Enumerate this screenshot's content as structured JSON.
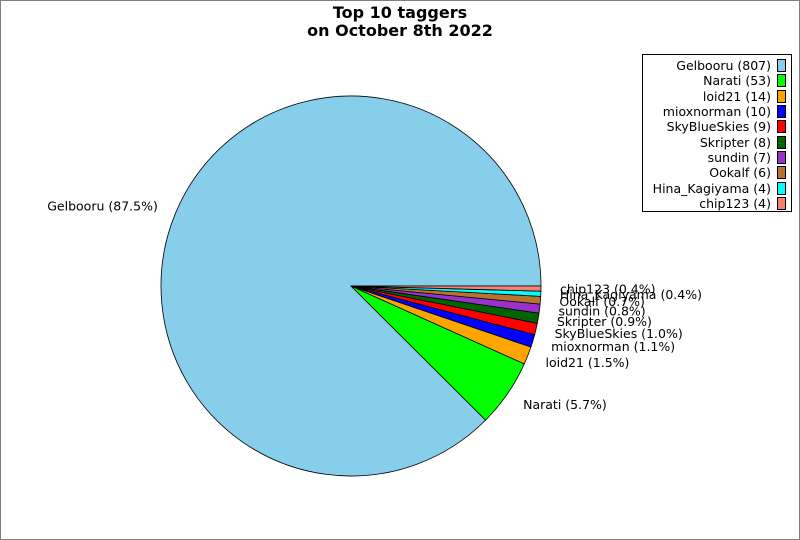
{
  "chart_data": {
    "type": "pie",
    "title": [
      "Top 10 taggers",
      "on October 8th 2022"
    ],
    "start_angle_deg": 0,
    "direction": "counterclockwise",
    "legend_position": "top-right",
    "slices": [
      {
        "name": "Gelbooru",
        "value": 807,
        "label": "Gelbooru (87.5%)",
        "legend": "Gelbooru (807)",
        "color": "#87ceeb"
      },
      {
        "name": "Narati",
        "value": 53,
        "label": "Narati (5.7%)",
        "legend": "Narati (53)",
        "color": "#00ff00"
      },
      {
        "name": "loid21",
        "value": 14,
        "label": "loid21 (1.5%)",
        "legend": "loid21 (14)",
        "color": "#ffa500"
      },
      {
        "name": "mioxnorman",
        "value": 10,
        "label": "mioxnorman (1.1%)",
        "legend": "mioxnorman (10)",
        "color": "#0000ff"
      },
      {
        "name": "SkyBlueSkies",
        "value": 9,
        "label": "SkyBlueSkies (1.0%)",
        "legend": "SkyBlueSkies (9)",
        "color": "#ff0000"
      },
      {
        "name": "Skripter",
        "value": 8,
        "label": "Skripter (0.9%)",
        "legend": "Skripter (8)",
        "color": "#006400"
      },
      {
        "name": "sundin",
        "value": 7,
        "label": "sundin (0.8%)",
        "legend": "sundin (7)",
        "color": "#9932cc"
      },
      {
        "name": "Ookalf",
        "value": 6,
        "label": "Ookalf (0.7%)",
        "legend": "Ookalf (6)",
        "color": "#b8732e"
      },
      {
        "name": "Hina_Kagiyama",
        "value": 4,
        "label": "Hina_Kagiyama (0.4%)",
        "legend": "Hina_Kagiyama (4)",
        "color": "#00ffff"
      },
      {
        "name": "chip123",
        "value": 4,
        "label": "chip123 (0.4%)",
        "legend": "chip123 (4)",
        "color": "#fa8072"
      }
    ]
  }
}
